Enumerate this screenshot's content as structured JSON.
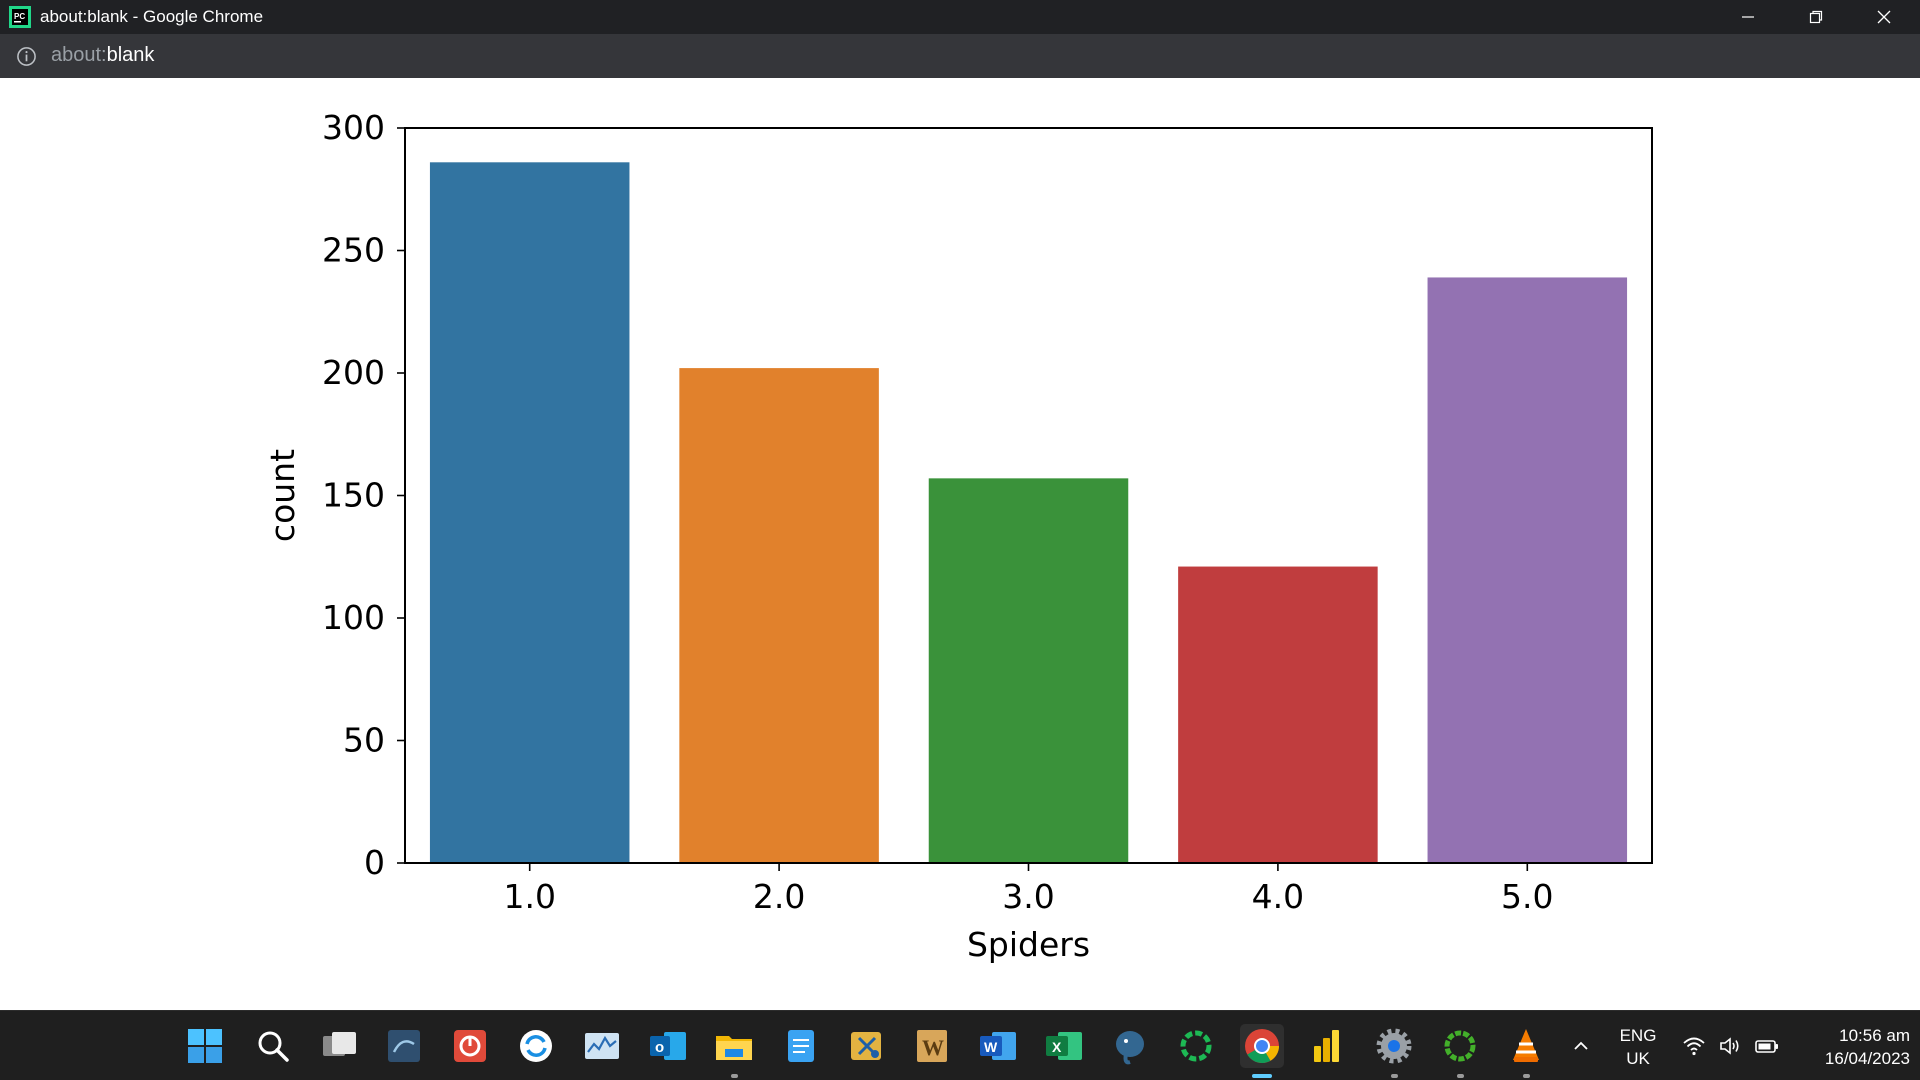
{
  "window": {
    "title": "about:blank - Google Chrome"
  },
  "addressbar": {
    "url_scheme": "about:",
    "url_rest": "blank"
  },
  "chart_data": {
    "type": "bar",
    "categories": [
      "1.0",
      "2.0",
      "3.0",
      "4.0",
      "5.0"
    ],
    "values": [
      286,
      202,
      157,
      121,
      239
    ],
    "colors": [
      "#3274a1",
      "#e1812c",
      "#3a923a",
      "#c03d3e",
      "#9372b2"
    ],
    "xlabel": "Spiders",
    "ylabel": "count",
    "ylim": [
      0,
      300
    ],
    "yticks": [
      0,
      50,
      100,
      150,
      200,
      250,
      300
    ],
    "grid": false
  },
  "taskbar": {
    "apps": [
      {
        "name": "start-icon",
        "active": false,
        "running": false
      },
      {
        "name": "search-icon",
        "active": false,
        "running": false
      },
      {
        "name": "task-view-icon",
        "active": false,
        "running": false
      },
      {
        "name": "mysql-workbench-icon",
        "active": false,
        "running": false
      },
      {
        "name": "power-app-icon",
        "active": false,
        "running": false
      },
      {
        "name": "sync-app-icon",
        "active": false,
        "running": false
      },
      {
        "name": "resource-monitor-icon",
        "active": false,
        "running": false
      },
      {
        "name": "outlook-icon",
        "active": false,
        "running": false
      },
      {
        "name": "file-explorer-icon",
        "active": false,
        "running": true
      },
      {
        "name": "notepad-icon",
        "active": false,
        "running": false
      },
      {
        "name": "snipping-tool-icon",
        "active": false,
        "running": false
      },
      {
        "name": "wordpad-icon",
        "active": false,
        "running": false
      },
      {
        "name": "word-icon",
        "active": false,
        "running": false
      },
      {
        "name": "excel-icon",
        "active": false,
        "running": false
      },
      {
        "name": "postgresql-icon",
        "active": false,
        "running": false
      },
      {
        "name": "jupyter-app-icon",
        "active": false,
        "running": false
      },
      {
        "name": "chrome-icon",
        "active": true,
        "running": true
      },
      {
        "name": "power-bi-icon",
        "active": false,
        "running": false
      },
      {
        "name": "settings-icon",
        "active": false,
        "running": true
      },
      {
        "name": "anaconda-icon",
        "active": false,
        "running": true
      },
      {
        "name": "vlc-icon",
        "active": false,
        "running": true
      }
    ],
    "lang_line1": "ENG",
    "lang_line2": "UK",
    "time": "10:56 am",
    "date": "16/04/2023"
  }
}
